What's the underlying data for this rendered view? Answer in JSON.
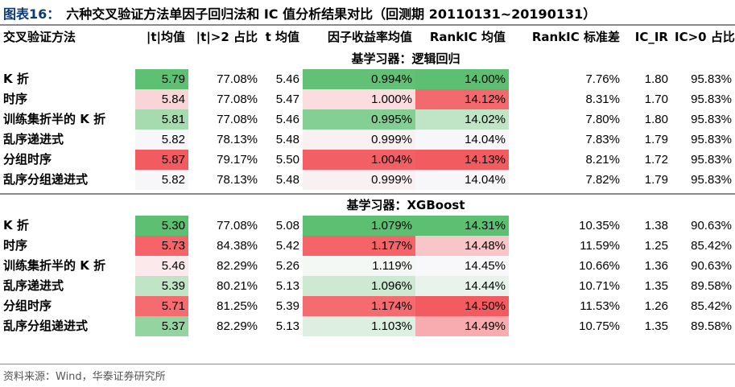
{
  "title": {
    "figure_label": "图表16：",
    "text": "六种交叉验证方法单因子回归法和 IC 值分析结果对比（回测期 20110131~20190131）"
  },
  "columns": [
    "交叉验证方法",
    "|t|均值",
    "|t|>2 占比",
    "t 均值",
    "因子收益率均值",
    "RankIC 均值",
    "RankIC 标准差",
    "IC_IR",
    "IC>0 占比"
  ],
  "sections": [
    {
      "label": "基学习器：逻辑回归",
      "rows": [
        {
          "method": "K 折",
          "t_abs_mean": "5.79",
          "t_gt2": "77.08%",
          "t_mean": "5.46",
          "factor_return": "0.994%",
          "rankic_mean": "14.00%",
          "rankic_std": "7.76%",
          "ic_ir": "1.80",
          "ic_pos": "95.83%",
          "colors": {
            "t_abs_mean": "#5ec073",
            "factor_return": "#62c077",
            "rankic_mean": "#5cbf71"
          }
        },
        {
          "method": "时序",
          "t_abs_mean": "5.84",
          "t_gt2": "77.08%",
          "t_mean": "5.47",
          "factor_return": "1.000%",
          "rankic_mean": "14.12%",
          "rankic_std": "8.31%",
          "ic_ir": "1.70",
          "ic_pos": "95.83%",
          "colors": {
            "t_abs_mean": "#fad5d7",
            "factor_return": "#fbdde0",
            "rankic_mean": "#f26a6e"
          }
        },
        {
          "method": "训练集折半的 K 折",
          "t_abs_mean": "5.81",
          "t_gt2": "77.08%",
          "t_mean": "5.46",
          "factor_return": "0.995%",
          "rankic_mean": "14.02%",
          "rankic_std": "7.80%",
          "ic_ir": "1.80",
          "ic_pos": "95.83%",
          "colors": {
            "t_abs_mean": "#a6dbb0",
            "factor_return": "#84cf93",
            "rankic_mean": "#bfe5c6"
          }
        },
        {
          "method": "乱序递进式",
          "t_abs_mean": "5.82",
          "t_gt2": "78.13%",
          "t_mean": "5.48",
          "factor_return": "0.999%",
          "rankic_mean": "14.04%",
          "rankic_std": "7.83%",
          "ic_ir": "1.79",
          "ic_pos": "95.83%",
          "colors": {
            "t_abs_mean": "#f7f7fa",
            "factor_return": "#f9f0f2",
            "rankic_mean": "#f7f7fa"
          }
        },
        {
          "method": "分组时序",
          "t_abs_mean": "5.87",
          "t_gt2": "79.17%",
          "t_mean": "5.50",
          "factor_return": "1.004%",
          "rankic_mean": "14.13%",
          "rankic_std": "8.21%",
          "ic_ir": "1.72",
          "ic_pos": "95.83%",
          "colors": {
            "t_abs_mean": "#f25b60",
            "factor_return": "#f25f64",
            "rankic_mean": "#f25b60"
          }
        },
        {
          "method": "乱序分组递进式",
          "t_abs_mean": "5.82",
          "t_gt2": "78.13%",
          "t_mean": "5.48",
          "factor_return": "0.999%",
          "rankic_mean": "14.04%",
          "rankic_std": "7.82%",
          "ic_ir": "1.79",
          "ic_pos": "95.83%",
          "colors": {
            "t_abs_mean": "#f7f7fa",
            "factor_return": "#f9f0f2",
            "rankic_mean": "#f7f7fa"
          }
        }
      ]
    },
    {
      "label": "基学习器：XGBoost",
      "rows": [
        {
          "method": "K 折",
          "t_abs_mean": "5.30",
          "t_gt2": "77.08%",
          "t_mean": "5.08",
          "factor_return": "1.079%",
          "rankic_mean": "14.31%",
          "rankic_std": "10.35%",
          "ic_ir": "1.38",
          "ic_pos": "90.63%",
          "colors": {
            "t_abs_mean": "#5cbf71",
            "factor_return": "#5cbf71",
            "rankic_mean": "#5cbf71"
          }
        },
        {
          "method": "时序",
          "t_abs_mean": "5.73",
          "t_gt2": "84.38%",
          "t_mean": "5.42",
          "factor_return": "1.177%",
          "rankic_mean": "14.48%",
          "rankic_std": "11.59%",
          "ic_ir": "1.25",
          "ic_pos": "85.42%",
          "colors": {
            "t_abs_mean": "#f46468",
            "factor_return": "#f46468",
            "rankic_mean": "#f8c5c8"
          }
        },
        {
          "method": "训练集折半的 K 折",
          "t_abs_mean": "5.46",
          "t_gt2": "82.29%",
          "t_mean": "5.26",
          "factor_return": "1.119%",
          "rankic_mean": "14.45%",
          "rankic_std": "10.66%",
          "ic_ir": "1.36",
          "ic_pos": "90.63%",
          "colors": {
            "t_abs_mean": "#fbe9ec",
            "factor_return": "#f3f8f5",
            "rankic_mean": "#f8f7fa"
          }
        },
        {
          "method": "乱序递进式",
          "t_abs_mean": "5.39",
          "t_gt2": "80.21%",
          "t_mean": "5.13",
          "factor_return": "1.096%",
          "rankic_mean": "14.44%",
          "rankic_std": "10.71%",
          "ic_ir": "1.35",
          "ic_pos": "89.58%",
          "colors": {
            "t_abs_mean": "#bfe5c6",
            "factor_return": "#cde9d2",
            "rankic_mean": "#e8f4eb"
          }
        },
        {
          "method": "分组时序",
          "t_abs_mean": "5.71",
          "t_gt2": "81.25%",
          "t_mean": "5.39",
          "factor_return": "1.174%",
          "rankic_mean": "14.50%",
          "rankic_std": "11.53%",
          "ic_ir": "1.26",
          "ic_pos": "85.42%",
          "colors": {
            "t_abs_mean": "#f46c70",
            "factor_return": "#f46c70",
            "rankic_mean": "#f25b60"
          }
        },
        {
          "method": "乱序分组递进式",
          "t_abs_mean": "5.37",
          "t_gt2": "82.29%",
          "t_mean": "5.13",
          "factor_return": "1.103%",
          "rankic_mean": "14.49%",
          "rankic_std": "10.75%",
          "ic_ir": "1.35",
          "ic_pos": "89.58%",
          "colors": {
            "t_abs_mean": "#93d4a0",
            "factor_return": "#dcefe0",
            "rankic_mean": "#f8acb0"
          }
        }
      ]
    }
  ],
  "source": "资料来源：Wind，华泰证券研究所"
}
